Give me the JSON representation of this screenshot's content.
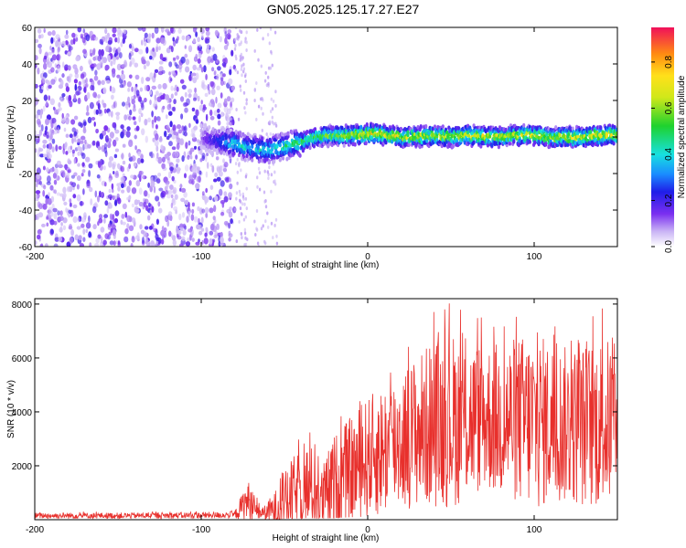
{
  "title": "GN05.2025.125.17.27.E27",
  "chart_data": [
    {
      "type": "heatmap",
      "xlabel": "Height of straight line (km)",
      "ylabel": "Frequency (Hz)",
      "xlim": [
        -200,
        150
      ],
      "ylim": [
        -60,
        60
      ],
      "x_ticks": [
        -200,
        -100,
        0,
        100
      ],
      "y_ticks": [
        -60,
        -40,
        -20,
        0,
        20,
        40,
        60
      ],
      "colorbar": {
        "label": "Normalized spectral amplitude",
        "range": [
          0.0,
          0.95
        ],
        "ticks": [
          "0.0",
          "0.2",
          "0.4",
          "0.6",
          "0.8"
        ]
      },
      "ridge": {
        "x": [
          -100,
          -90,
          -80,
          -70,
          -60,
          -50,
          -40,
          -30,
          -20,
          -10,
          0,
          10,
          20,
          30,
          40,
          50,
          60,
          70,
          80,
          90,
          100,
          110,
          120,
          130,
          140,
          150
        ],
        "freq": [
          0,
          -2,
          -4,
          -6,
          -7,
          -5,
          -3,
          0,
          1,
          1,
          2,
          1,
          0,
          0,
          1,
          0,
          1,
          0,
          0,
          1,
          1,
          0,
          0,
          0,
          1,
          1
        ],
        "peak_amplitude": [
          0.15,
          0.3,
          0.5,
          0.45,
          0.5,
          0.55,
          0.6,
          0.65,
          0.7,
          0.75,
          0.85,
          0.8,
          0.8,
          0.75,
          0.8,
          0.75,
          0.8,
          0.8,
          0.75,
          0.8,
          0.8,
          0.75,
          0.8,
          0.8,
          0.85,
          0.8
        ]
      },
      "noise_region_x": [
        -200,
        -80
      ]
    },
    {
      "type": "line",
      "xlabel": "Height of straight line (km)",
      "ylabel": "SNR (10 * v/v)",
      "xlim": [
        -200,
        150
      ],
      "ylim": [
        0,
        8200
      ],
      "x_ticks": [
        -200,
        -100,
        0,
        100
      ],
      "y_ticks": [
        2000,
        4000,
        6000,
        8000
      ],
      "color": "#e8302c",
      "envelope": {
        "x": [
          -200,
          -150,
          -100,
          -80,
          -72,
          -68,
          -62,
          -55,
          -45,
          -35,
          -28,
          -20,
          -10,
          0,
          10,
          20,
          30,
          40,
          50,
          60,
          70,
          80,
          90,
          100,
          110,
          120,
          130,
          140,
          150
        ],
        "mean": [
          150,
          150,
          160,
          180,
          700,
          350,
          250,
          400,
          900,
          1200,
          700,
          1300,
          1800,
          2300,
          2600,
          3000,
          3300,
          3600,
          3700,
          3700,
          3800,
          3700,
          3700,
          3600,
          3600,
          3500,
          3500,
          3600,
          3600
        ],
        "peak": [
          300,
          300,
          320,
          350,
          1800,
          900,
          600,
          1400,
          2800,
          3500,
          2300,
          3800,
          4500,
          5300,
          5900,
          6500,
          7100,
          7800,
          8100,
          7700,
          7500,
          7600,
          7900,
          8100,
          7700,
          7400,
          7600,
          7900,
          7600
        ]
      }
    }
  ]
}
